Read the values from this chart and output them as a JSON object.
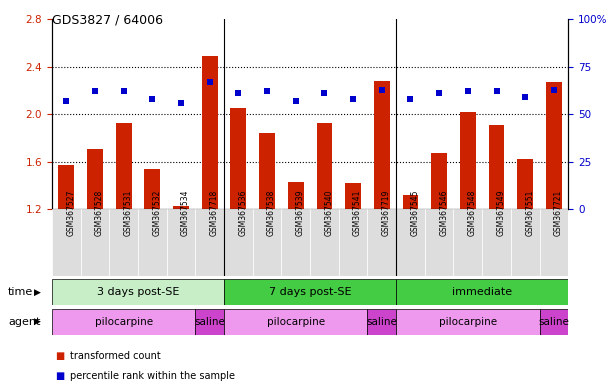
{
  "title": "GDS3827 / 64006",
  "samples": [
    "GSM367527",
    "GSM367528",
    "GSM367531",
    "GSM367532",
    "GSM367534",
    "GSM367718",
    "GSM367536",
    "GSM367538",
    "GSM367539",
    "GSM367540",
    "GSM367541",
    "GSM367719",
    "GSM367545",
    "GSM367546",
    "GSM367548",
    "GSM367549",
    "GSM367551",
    "GSM367721"
  ],
  "bar_values": [
    1.57,
    1.71,
    1.93,
    1.54,
    1.23,
    2.49,
    2.05,
    1.84,
    1.43,
    1.93,
    1.42,
    2.28,
    1.32,
    1.67,
    2.02,
    1.91,
    1.62,
    2.27
  ],
  "dot_values": [
    57,
    62,
    62,
    58,
    56,
    67,
    61,
    62,
    57,
    61,
    58,
    63,
    58,
    61,
    62,
    62,
    59,
    63
  ],
  "bar_color": "#cc2200",
  "dot_color": "#0000cc",
  "bar_bottom": 1.2,
  "ylim_left": [
    1.2,
    2.8
  ],
  "ylim_right": [
    0,
    100
  ],
  "yticks_left": [
    1.2,
    1.6,
    2.0,
    2.4,
    2.8
  ],
  "yticks_right": [
    0,
    25,
    50,
    75,
    100
  ],
  "ytick_labels_left": [
    "1.2",
    "1.6",
    "2.0",
    "2.4",
    "2.8"
  ],
  "ytick_labels_right": [
    "0",
    "25",
    "50",
    "75",
    "100%"
  ],
  "hlines": [
    1.6,
    2.0,
    2.4
  ],
  "group_boundaries": [
    6,
    12
  ],
  "time_groups": [
    {
      "label": "3 days post-SE",
      "start": 0,
      "end": 6,
      "color": "#c8eec8"
    },
    {
      "label": "7 days post-SE",
      "start": 6,
      "end": 12,
      "color": "#44cc44"
    },
    {
      "label": "immediate",
      "start": 12,
      "end": 18,
      "color": "#44cc44"
    }
  ],
  "agent_groups": [
    {
      "label": "pilocarpine",
      "start": 0,
      "end": 5,
      "color": "#ee99ee"
    },
    {
      "label": "saline",
      "start": 5,
      "end": 6,
      "color": "#cc44cc"
    },
    {
      "label": "pilocarpine",
      "start": 6,
      "end": 11,
      "color": "#ee99ee"
    },
    {
      "label": "saline",
      "start": 11,
      "end": 12,
      "color": "#cc44cc"
    },
    {
      "label": "pilocarpine",
      "start": 12,
      "end": 17,
      "color": "#ee99ee"
    },
    {
      "label": "saline",
      "start": 17,
      "end": 18,
      "color": "#cc44cc"
    }
  ],
  "legend_items": [
    {
      "label": "transformed count",
      "color": "#cc2200",
      "marker": "s"
    },
    {
      "label": "percentile rank within the sample",
      "color": "#0000cc",
      "marker": "s"
    }
  ],
  "xlabel_time": "time",
  "xlabel_agent": "agent",
  "bg_color": "#ffffff",
  "plot_bg_color": "#ffffff",
  "tick_label_color_left": "#cc2200",
  "tick_label_color_right": "#0000cc",
  "xtick_bg_color": "#dddddd",
  "bar_width": 0.55
}
